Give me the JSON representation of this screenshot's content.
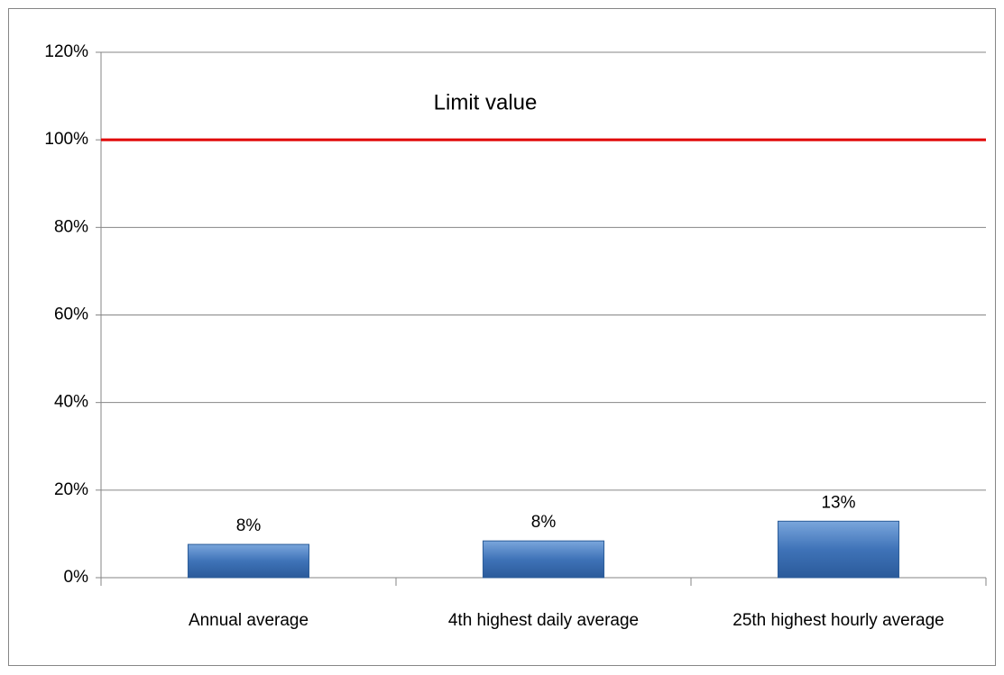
{
  "chart_data": {
    "type": "bar",
    "categories": [
      "Annual average",
      "4th highest daily average",
      "25th highest hourly average"
    ],
    "values": [
      7.6,
      8.4,
      12.9
    ],
    "value_labels": [
      "8%",
      "8%",
      "13%"
    ],
    "color": "#4a7ebb",
    "ylim": [
      0,
      120
    ],
    "yticks": [
      {
        "value": 0,
        "label": "0%"
      },
      {
        "value": 20,
        "label": "20%"
      },
      {
        "value": 40,
        "label": "40%"
      },
      {
        "value": 60,
        "label": "60%"
      },
      {
        "value": 80,
        "label": "80%"
      },
      {
        "value": 100,
        "label": "100%"
      },
      {
        "value": 120,
        "label": "120%"
      }
    ],
    "grid": true,
    "limit": {
      "value": 100,
      "label": "Limit value",
      "color": "#e00000"
    }
  }
}
